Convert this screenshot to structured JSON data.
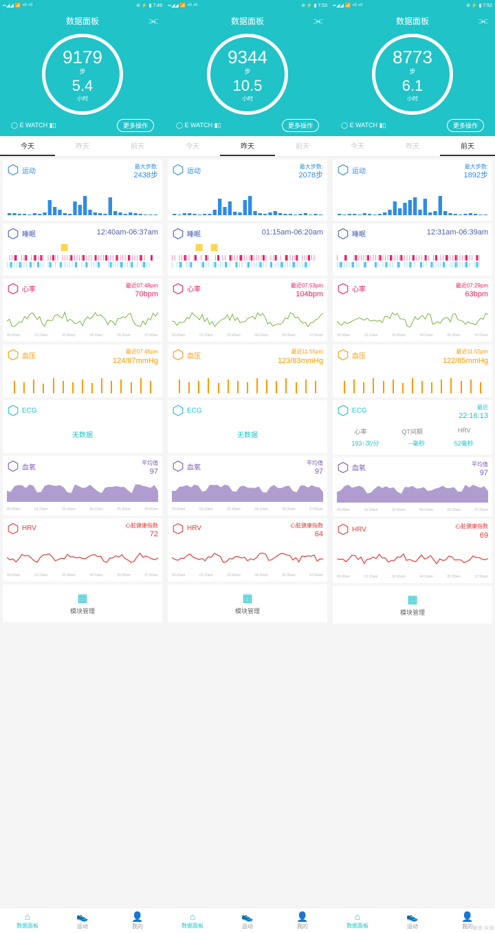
{
  "panels": [
    {
      "time": "7:49",
      "title": "数据面板",
      "steps": "9179",
      "step_unit": "步",
      "hours": "5.4",
      "hour_unit": "小时",
      "watch": "E WATCH",
      "more": "更多操作",
      "tabs": [
        "今天",
        "昨天",
        "前天"
      ],
      "active_tab": 0,
      "activity": {
        "label": "运动",
        "sub": "最大步数:",
        "val": "2438步",
        "bars": [
          3,
          3,
          2,
          2,
          1,
          3,
          2,
          4,
          22,
          12,
          8,
          3,
          2,
          20,
          15,
          28,
          8,
          4,
          3,
          2,
          26,
          6,
          4,
          2,
          4,
          3,
          2,
          1,
          1,
          1
        ],
        "color": "#2e8ce6"
      },
      "sleep": {
        "label": "睡眠",
        "time": "12:40am-06:37am",
        "yellow": [
          0.38
        ],
        "pink": [
          0.05,
          0.12,
          0.18,
          0.22,
          0.3,
          0.42,
          0.5,
          0.58,
          0.65,
          0.72,
          0.8,
          0.88,
          0.95
        ],
        "blue": [
          0.02,
          0.08,
          0.15,
          0.2,
          0.28,
          0.35,
          0.45,
          0.52,
          0.6,
          0.68,
          0.75,
          0.82,
          0.9
        ]
      },
      "hr": {
        "label": "心率",
        "sub": "最近07:48pm",
        "val": "70bpm",
        "color": "#e91e63"
      },
      "bp": {
        "label": "血压",
        "sub": "最近07:45pm",
        "val": "124/87mmHg",
        "bars": [
          18,
          16,
          20,
          14,
          22,
          18,
          16,
          20,
          15,
          22,
          18,
          20,
          16,
          22,
          18
        ],
        "color": "#ff9800"
      },
      "ecg": {
        "label": "ECG",
        "nodata": "无数据",
        "has_data": false
      },
      "spo2": {
        "label": "血氧",
        "sub": "平均值",
        "val": "97",
        "color": "#7b5cb0"
      },
      "hrv": {
        "label": "HRV",
        "sub": "心脏健康指数",
        "val": "72",
        "color": "#e53935"
      },
      "module": "模块管理",
      "nav": [
        "数据面板",
        "运动",
        "我的"
      ],
      "nav_active": 0
    },
    {
      "time": "7:53",
      "title": "数据面板",
      "steps": "9344",
      "step_unit": "步",
      "hours": "10.5",
      "hour_unit": "小时",
      "watch": "E WATCH",
      "more": "更多操作",
      "tabs": [
        "今天",
        "昨天",
        "前天"
      ],
      "active_tab": 1,
      "activity": {
        "label": "运动",
        "sub": "最大步数:",
        "val": "2078步",
        "bars": [
          2,
          1,
          3,
          3,
          2,
          1,
          2,
          2,
          8,
          24,
          12,
          20,
          5,
          4,
          22,
          28,
          6,
          3,
          2,
          4,
          6,
          3,
          2,
          2,
          1,
          2,
          3,
          1,
          2,
          1
        ],
        "color": "#2e8ce6"
      },
      "sleep": {
        "label": "睡眠",
        "time": "01:15am-06:20am",
        "yellow": [
          0.18,
          0.28
        ],
        "pink": [
          0.08,
          0.15,
          0.22,
          0.3,
          0.38,
          0.45,
          0.52,
          0.6,
          0.68,
          0.75,
          0.82,
          0.9
        ],
        "blue": [
          0.05,
          0.12,
          0.2,
          0.28,
          0.35,
          0.42,
          0.5,
          0.58,
          0.65,
          0.72,
          0.8,
          0.88
        ]
      },
      "hr": {
        "label": "心率",
        "sub": "最近07:53pm",
        "val": "104bpm",
        "color": "#e91e63"
      },
      "bp": {
        "label": "血压",
        "sub": "最近11:55pm",
        "val": "123/83mmHg",
        "bars": [
          20,
          16,
          18,
          22,
          15,
          20,
          18,
          16,
          22,
          20,
          18,
          22,
          16,
          20,
          18
        ],
        "color": "#ff9800"
      },
      "ecg": {
        "label": "ECG",
        "nodata": "无数据",
        "has_data": false
      },
      "spo2": {
        "label": "血氧",
        "sub": "平均值",
        "val": "97",
        "color": "#7b5cb0"
      },
      "hrv": {
        "label": "HRV",
        "sub": "心脏健康指数",
        "val": "64",
        "color": "#e53935"
      },
      "module": "模块管理",
      "nav": [
        "数据面板",
        "运动",
        "我的"
      ],
      "nav_active": 0
    },
    {
      "time": "7:52",
      "title": "数据面板",
      "steps": "8773",
      "step_unit": "步",
      "hours": "6.1",
      "hour_unit": "小时",
      "watch": "E WATCH",
      "more": "更多操作",
      "tabs": [
        "今天",
        "昨天",
        "前天"
      ],
      "active_tab": 2,
      "activity": {
        "label": "运动",
        "sub": "最大步数:",
        "val": "1892步",
        "bars": [
          2,
          1,
          2,
          2,
          1,
          3,
          2,
          1,
          2,
          4,
          8,
          20,
          10,
          18,
          22,
          26,
          8,
          24,
          4,
          6,
          28,
          6,
          3,
          2,
          1,
          2,
          3,
          2,
          1,
          1
        ],
        "color": "#2e8ce6"
      },
      "sleep": {
        "label": "睡眠",
        "time": "12:31am-06:39am",
        "yellow": [],
        "pink": [
          0.05,
          0.12,
          0.2,
          0.28,
          0.35,
          0.42,
          0.5,
          0.58,
          0.65,
          0.72,
          0.78,
          0.85,
          0.92
        ],
        "blue": [
          0.02,
          0.1,
          0.18,
          0.25,
          0.32,
          0.4,
          0.48,
          0.55,
          0.62,
          0.7,
          0.78,
          0.85,
          0.92
        ]
      },
      "hr": {
        "label": "心率",
        "sub": "最近07:29pm",
        "val": "63bpm",
        "color": "#e91e63"
      },
      "bp": {
        "label": "血压",
        "sub": "最近11:55pm",
        "val": "122/85mmHg",
        "bars": [
          18,
          20,
          16,
          22,
          18,
          20,
          15,
          22,
          18,
          16,
          20,
          22,
          18,
          20,
          16
        ],
        "color": "#ff9800"
      },
      "ecg": {
        "label": "ECG",
        "has_data": true,
        "sub": "最近",
        "val": "22:16:13",
        "cols": [
          "心率",
          "QT间期",
          "HRV"
        ],
        "vals": [
          "193↑次/分",
          "--毫秒",
          "52毫秒"
        ]
      },
      "spo2": {
        "label": "血氧",
        "sub": "平均值",
        "val": "97",
        "color": "#7b5cb0"
      },
      "hrv": {
        "label": "HRV",
        "sub": "心脏健康指数",
        "val": "69",
        "color": "#e53935"
      },
      "module": "模块管理",
      "nav": [
        "数据面板",
        "运动",
        "我的"
      ],
      "nav_active": 0
    }
  ],
  "time_labels": [
    "00:00am",
    "01:20am",
    "02:40am",
    "04:10am",
    "05:30am",
    "07:00am"
  ],
  "watermark": "新良 众测"
}
